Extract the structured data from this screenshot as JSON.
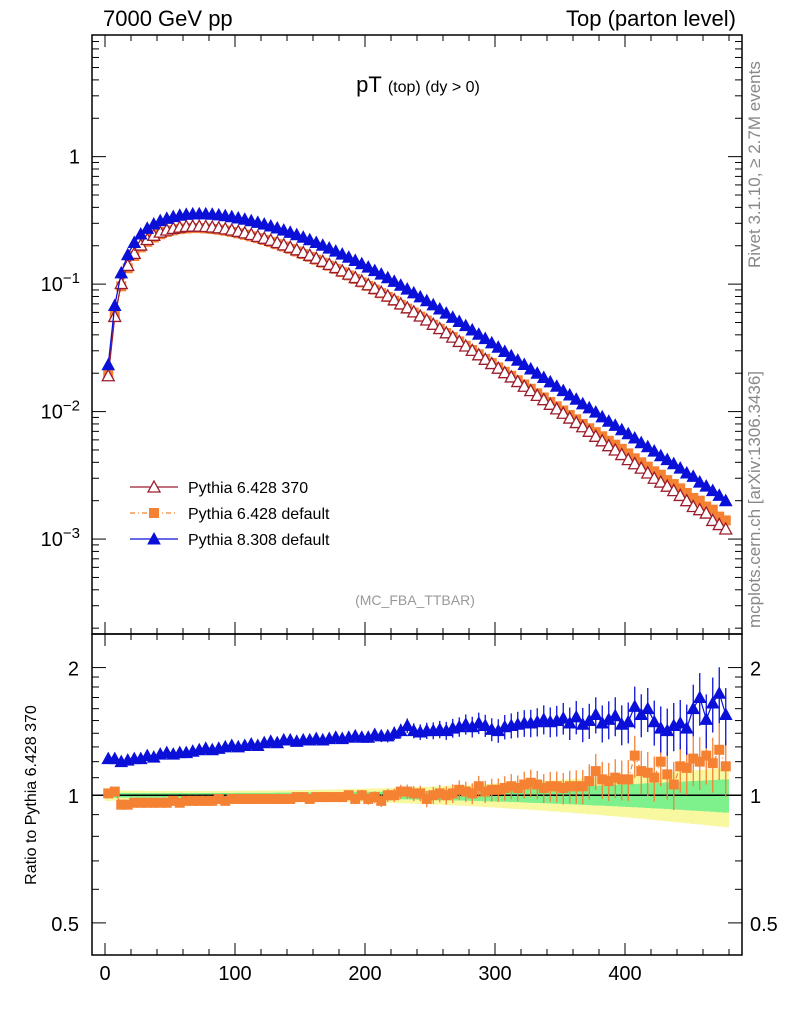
{
  "header": {
    "left": "7000 GeV pp",
    "right": "Top (parton level)"
  },
  "side_labels": {
    "rivet": "Rivet 3.1.10, ≥ 2.7M events",
    "mcplots": "mcplots.cern.ch [arXiv:1306.3436]"
  },
  "colors": {
    "p6_370": "#9b1c2c",
    "p6_default": "#f58233",
    "p8_default": "#0b10d8",
    "band_green": "#7ef08c",
    "band_yellow": "#f8f8a0"
  },
  "chart_data": [
    {
      "type": "line",
      "title": "pT (top) (dy > 0)",
      "title_main": "pT",
      "title_sub": "(top) (dy > 0)",
      "annotation": "(MC_FBA_TTBAR)",
      "xlabel": "",
      "ylabel": "",
      "y_scale": "log",
      "xlim": [
        -10,
        490
      ],
      "ylim": [
        0.00018,
        9
      ],
      "y_tick_labels": [
        "10^-3",
        "10^-2",
        "10^-1",
        "1"
      ],
      "legend_placement": "bottom-left",
      "x": [
        2.5,
        7.5,
        12.5,
        17.5,
        22.5,
        27.5,
        32.5,
        37.5,
        42.5,
        47.5,
        52.5,
        57.5,
        62.5,
        67.5,
        72.5,
        77.5,
        82.5,
        87.5,
        92.5,
        97.5,
        102.5,
        107.5,
        112.5,
        117.5,
        122.5,
        127.5,
        132.5,
        137.5,
        142.5,
        147.5,
        152.5,
        157.5,
        162.5,
        167.5,
        172.5,
        177.5,
        182.5,
        187.5,
        192.5,
        197.5,
        202.5,
        207.5,
        212.5,
        217.5,
        222.5,
        227.5,
        232.5,
        237.5,
        242.5,
        247.5,
        252.5,
        257.5,
        262.5,
        267.5,
        272.5,
        277.5,
        282.5,
        287.5,
        292.5,
        297.5,
        302.5,
        307.5,
        312.5,
        317.5,
        322.5,
        327.5,
        332.5,
        337.5,
        342.5,
        347.5,
        352.5,
        357.5,
        362.5,
        367.5,
        372.5,
        377.5,
        382.5,
        387.5,
        392.5,
        397.5,
        402.5,
        407.5,
        412.5,
        417.5,
        422.5,
        427.5,
        432.5,
        437.5,
        442.5,
        447.5,
        452.5,
        457.5,
        462.5,
        467.5,
        472.5,
        477.5
      ],
      "series": [
        {
          "name": "Pythia 6.428 370",
          "marker": "open-triangle",
          "values": [
            0.0191,
            0.0558,
            0.101,
            0.1401,
            0.174,
            0.2024,
            0.2239,
            0.2414,
            0.2557,
            0.2659,
            0.2738,
            0.2797,
            0.2834,
            0.2849,
            0.2848,
            0.2833,
            0.2803,
            0.2764,
            0.2714,
            0.2657,
            0.259,
            0.2522,
            0.2449,
            0.2369,
            0.2288,
            0.2206,
            0.2119,
            0.2032,
            0.1946,
            0.1858,
            0.1768,
            0.1683,
            0.1595,
            0.151,
            0.1429,
            0.1349,
            0.1271,
            0.1198,
            0.1126,
            0.1056,
            0.0989,
            0.0925,
            0.0865,
            0.0807,
            0.0753,
            0.07,
            0.0652,
            0.0606,
            0.0562,
            0.0523,
            0.0484,
            0.0448,
            0.0415,
            0.0384,
            0.0355,
            0.0327,
            0.0302,
            0.0279,
            0.0257,
            0.0238,
            0.0219,
            0.0202,
            0.0187,
            0.0172,
            0.0158,
            0.0146,
            0.0134,
            0.0124,
            0.0114,
            0.0105,
            0.0097,
            0.0089,
            0.0082,
            0.0076,
            0.007,
            0.0064,
            0.0059,
            0.0054,
            0.005,
            0.0046,
            0.0042,
            0.0039,
            0.0036,
            0.0033,
            0.003,
            0.0028,
            0.0026,
            0.0024,
            0.0022,
            0.002,
            0.0018,
            0.0017,
            0.0016,
            0.0014,
            0.0013,
            0.0012
          ]
        },
        {
          "name": "Pythia 6.428 default",
          "marker": "filled-square",
          "values": [
            0.0193,
            0.0568,
            0.0961,
            0.1332,
            0.1663,
            0.1943,
            0.2147,
            0.2321,
            0.246,
            0.2564,
            0.2642,
            0.27,
            0.2733,
            0.2752,
            0.275,
            0.2734,
            0.2707,
            0.2671,
            0.2623,
            0.2566,
            0.2504,
            0.2439,
            0.2369,
            0.2293,
            0.2216,
            0.2136,
            0.2054,
            0.1971,
            0.1888,
            0.1803,
            0.1718,
            0.1636,
            0.1552,
            0.1471,
            0.1394,
            0.1316,
            0.1241,
            0.117,
            0.1098,
            0.1031,
            0.0968,
            0.0906,
            0.0848,
            0.0792,
            0.074,
            0.0688,
            0.0642,
            0.0598,
            0.0556,
            0.0518,
            0.0479,
            0.0446,
            0.0413,
            0.0384,
            0.0355,
            0.0328,
            0.0304,
            0.0281,
            0.0259,
            0.024,
            0.0222,
            0.0205,
            0.0191,
            0.0176,
            0.0163,
            0.0151,
            0.0139,
            0.0129,
            0.0119,
            0.011,
            0.0102,
            0.0094,
            0.0087,
            0.008,
            0.0074,
            0.0069,
            0.0064,
            0.0059,
            0.0055,
            0.0051,
            0.0047,
            0.0043,
            0.004,
            0.0037,
            0.0034,
            0.0032,
            0.0029,
            0.0027,
            0.0025,
            0.0023,
            0.0021,
            0.002,
            0.0018,
            0.0017,
            0.0015,
            0.0014
          ]
        },
        {
          "name": "Pythia 8.308 default",
          "marker": "filled-triangle",
          "values": [
            0.0233,
            0.0679,
            0.1224,
            0.17,
            0.212,
            0.247,
            0.2739,
            0.2962,
            0.3143,
            0.3278,
            0.3383,
            0.3467,
            0.3523,
            0.3551,
            0.3561,
            0.3555,
            0.3531,
            0.3493,
            0.344,
            0.3377,
            0.3303,
            0.3226,
            0.3141,
            0.3048,
            0.2955,
            0.2856,
            0.2754,
            0.2652,
            0.2548,
            0.2442,
            0.2333,
            0.2228,
            0.2121,
            0.2017,
            0.1917,
            0.1815,
            0.1718,
            0.1625,
            0.1533,
            0.1444,
            0.1358,
            0.1276,
            0.1197,
            0.1122,
            0.105,
            0.0979,
            0.0914,
            0.0853,
            0.0794,
            0.074,
            0.0688,
            0.0638,
            0.0592,
            0.0549,
            0.0509,
            0.0472,
            0.0437,
            0.0404,
            0.0374,
            0.0346,
            0.032,
            0.0296,
            0.0274,
            0.0253,
            0.0234,
            0.0216,
            0.02,
            0.0185,
            0.0171,
            0.0158,
            0.0146,
            0.0135,
            0.0125,
            0.0115,
            0.0107,
            0.0099,
            0.0091,
            0.0084,
            0.0078,
            0.0072,
            0.0067,
            0.0062,
            0.0057,
            0.0053,
            0.0049,
            0.0045,
            0.0042,
            0.0039,
            0.0036,
            0.0033,
            0.0031,
            0.0028,
            0.0026,
            0.0024,
            0.0022,
            0.002
          ]
        }
      ]
    },
    {
      "type": "scatter",
      "title": "",
      "xlabel": "",
      "ylabel": "Ratio to Pythia 6.428 370",
      "y_scale": "log",
      "xlim": [
        -10,
        490
      ],
      "ylim": [
        0.42,
        2.4
      ],
      "x_tick_labels": [
        "0",
        "100",
        "200",
        "300",
        "400"
      ],
      "y_tick_labels": [
        "0.5",
        "1",
        "2"
      ],
      "reference_line": 1,
      "x": [
        2.5,
        7.5,
        12.5,
        17.5,
        22.5,
        27.5,
        32.5,
        37.5,
        42.5,
        47.5,
        52.5,
        57.5,
        62.5,
        67.5,
        72.5,
        77.5,
        82.5,
        87.5,
        92.5,
        97.5,
        102.5,
        107.5,
        112.5,
        117.5,
        122.5,
        127.5,
        132.5,
        137.5,
        142.5,
        147.5,
        152.5,
        157.5,
        162.5,
        167.5,
        172.5,
        177.5,
        182.5,
        187.5,
        192.5,
        197.5,
        202.5,
        207.5,
        212.5,
        217.5,
        222.5,
        227.5,
        232.5,
        237.5,
        242.5,
        247.5,
        252.5,
        257.5,
        262.5,
        267.5,
        272.5,
        277.5,
        282.5,
        287.5,
        292.5,
        297.5,
        302.5,
        307.5,
        312.5,
        317.5,
        322.5,
        327.5,
        332.5,
        337.5,
        342.5,
        347.5,
        352.5,
        357.5,
        362.5,
        367.5,
        372.5,
        377.5,
        382.5,
        387.5,
        392.5,
        397.5,
        402.5,
        407.5,
        412.5,
        417.5,
        422.5,
        427.5,
        432.5,
        437.5,
        442.5,
        447.5,
        452.5,
        457.5,
        462.5,
        467.5,
        472.5,
        477.5
      ],
      "band_inner": [
        0.015,
        0.014,
        0.013,
        0.013,
        0.012,
        0.012,
        0.012,
        0.012,
        0.012,
        0.012,
        0.012,
        0.012,
        0.012,
        0.012,
        0.012,
        0.012,
        0.012,
        0.012,
        0.012,
        0.012,
        0.013,
        0.013,
        0.013,
        0.013,
        0.013,
        0.013,
        0.014,
        0.014,
        0.014,
        0.014,
        0.015,
        0.015,
        0.015,
        0.016,
        0.016,
        0.017,
        0.017,
        0.017,
        0.018,
        0.018,
        0.019,
        0.019,
        0.02,
        0.02,
        0.021,
        0.022,
        0.022,
        0.023,
        0.024,
        0.024,
        0.025,
        0.026,
        0.027,
        0.028,
        0.028,
        0.029,
        0.03,
        0.031,
        0.032,
        0.033,
        0.034,
        0.035,
        0.036,
        0.037,
        0.039,
        0.04,
        0.041,
        0.042,
        0.044,
        0.045,
        0.046,
        0.048,
        0.049,
        0.051,
        0.052,
        0.054,
        0.055,
        0.057,
        0.058,
        0.06,
        0.062,
        0.063,
        0.065,
        0.067,
        0.069,
        0.07,
        0.072,
        0.074,
        0.076,
        0.078,
        0.08,
        0.082,
        0.084,
        0.086,
        0.088,
        0.09
      ],
      "band_outer": [
        0.03,
        0.029,
        0.027,
        0.026,
        0.025,
        0.025,
        0.024,
        0.024,
        0.024,
        0.024,
        0.024,
        0.024,
        0.024,
        0.024,
        0.024,
        0.024,
        0.024,
        0.024,
        0.024,
        0.025,
        0.025,
        0.025,
        0.025,
        0.026,
        0.026,
        0.026,
        0.027,
        0.027,
        0.028,
        0.028,
        0.029,
        0.029,
        0.03,
        0.031,
        0.031,
        0.032,
        0.033,
        0.034,
        0.035,
        0.036,
        0.037,
        0.038,
        0.039,
        0.04,
        0.041,
        0.042,
        0.043,
        0.045,
        0.046,
        0.047,
        0.049,
        0.05,
        0.052,
        0.053,
        0.055,
        0.057,
        0.058,
        0.06,
        0.062,
        0.064,
        0.066,
        0.068,
        0.07,
        0.072,
        0.074,
        0.076,
        0.078,
        0.081,
        0.083,
        0.085,
        0.088,
        0.09,
        0.093,
        0.095,
        0.098,
        0.1,
        0.103,
        0.106,
        0.108,
        0.111,
        0.114,
        0.117,
        0.12,
        0.123,
        0.126,
        0.129,
        0.132,
        0.135,
        0.138,
        0.141,
        0.144,
        0.147,
        0.15,
        0.153,
        0.156,
        0.159
      ],
      "series": [
        {
          "name": "Pythia 6.428 default",
          "marker": "filled-square",
          "values": [
            1.01,
            1.02,
            0.95,
            0.95,
            0.96,
            0.96,
            0.96,
            0.96,
            0.96,
            0.96,
            0.97,
            0.96,
            0.97,
            0.97,
            0.97,
            0.97,
            0.97,
            0.98,
            0.97,
            0.98,
            0.98,
            0.98,
            0.98,
            0.98,
            0.98,
            0.98,
            0.98,
            0.98,
            0.98,
            0.99,
            0.99,
            0.98,
            0.99,
            0.99,
            0.99,
            0.99,
            0.99,
            1.0,
            0.98,
            1.0,
            0.98,
            0.99,
            0.97,
            1.0,
            1.0,
            1.02,
            1.02,
            1.01,
            1.01,
            0.98,
            1.0,
            1.01,
            1.0,
            1.01,
            1.03,
            1.02,
            1.01,
            1.05,
            1.02,
            1.03,
            1.03,
            1.04,
            1.05,
            1.04,
            1.06,
            1.07,
            1.06,
            1.04,
            1.05,
            1.05,
            1.04,
            1.05,
            1.05,
            1.05,
            1.08,
            1.14,
            1.09,
            1.08,
            1.1,
            1.09,
            1.09,
            1.24,
            1.14,
            1.13,
            1.1,
            1.2,
            1.12,
            1.06,
            1.17,
            1.16,
            1.22,
            1.2,
            1.24,
            1.19,
            1.28,
            1.17
          ]
        },
        {
          "name": "Pythia 8.308 default",
          "marker": "filled-triangle",
          "values": [
            1.22,
            1.22,
            1.2,
            1.21,
            1.22,
            1.22,
            1.24,
            1.23,
            1.25,
            1.26,
            1.25,
            1.26,
            1.26,
            1.27,
            1.28,
            1.29,
            1.28,
            1.29,
            1.3,
            1.31,
            1.3,
            1.31,
            1.32,
            1.31,
            1.33,
            1.34,
            1.33,
            1.35,
            1.35,
            1.34,
            1.35,
            1.35,
            1.36,
            1.35,
            1.36,
            1.37,
            1.36,
            1.37,
            1.38,
            1.37,
            1.37,
            1.39,
            1.38,
            1.38,
            1.4,
            1.42,
            1.46,
            1.42,
            1.41,
            1.42,
            1.42,
            1.43,
            1.42,
            1.44,
            1.45,
            1.47,
            1.45,
            1.48,
            1.46,
            1.43,
            1.42,
            1.45,
            1.46,
            1.47,
            1.48,
            1.48,
            1.49,
            1.51,
            1.49,
            1.5,
            1.52,
            1.48,
            1.53,
            1.47,
            1.5,
            1.55,
            1.48,
            1.51,
            1.54,
            1.47,
            1.49,
            1.62,
            1.55,
            1.6,
            1.49,
            1.44,
            1.42,
            1.46,
            1.48,
            1.44,
            1.6,
            1.7,
            1.51,
            1.65,
            1.74,
            1.55
          ]
        }
      ]
    }
  ]
}
